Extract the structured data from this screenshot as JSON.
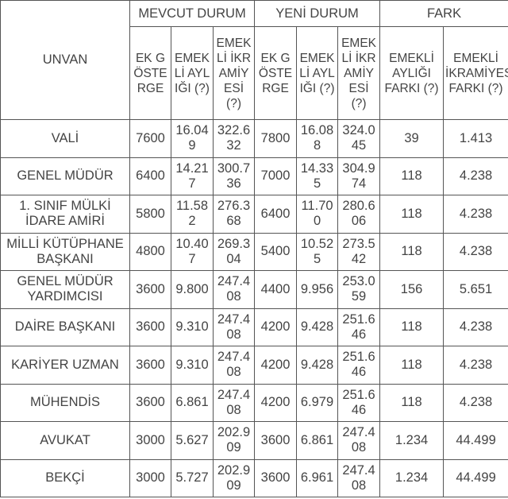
{
  "table": {
    "group_headers": [
      "MEVCUT DURUM",
      "YENİ DURUM",
      "FARK"
    ],
    "unvan_header": "UNVAN",
    "sub_headers": [
      "EK GÖSTERGE",
      "EMEKLİ AYLIĞI (?)",
      "EMEKLİ İKRAMİYESİ (?)",
      "EK GÖSTERGE",
      "EMEKLİ AYLIĞI (?)",
      "EMEKLİ İKRAMİYESİ (?)",
      "EMEKLİ AYLIĞI FARKI (?)",
      "EMEKLİ İKRAMİYESİ FARKI (?)"
    ],
    "rows": [
      [
        "VALİ",
        "7600",
        "16.049",
        "322.632",
        "7800",
        "16.088",
        "324.045",
        "39",
        "1.413"
      ],
      [
        "GENEL MÜDÜR",
        "6400",
        "14.217",
        "300.736",
        "7000",
        "14.335",
        "304.974",
        "118",
        "4.238"
      ],
      [
        "1. SINIF MÜLKİ İDARE AMİRİ",
        "5800",
        "11.582",
        "276.368",
        "6400",
        "11.700",
        "280.606",
        "118",
        "4.238"
      ],
      [
        "MİLLİ KÜTÜPHANE BAŞKANI",
        "4800",
        "10.407",
        "269.304",
        "5400",
        "10.525",
        "273.542",
        "118",
        "4.238"
      ],
      [
        "GENEL MÜDÜR YARDIMCISI",
        "3600",
        "9.800",
        "247.408",
        "4400",
        "9.956",
        "253.059",
        "156",
        "5.651"
      ],
      [
        "DAİRE BAŞKANI",
        "3600",
        "9.310",
        "247.408",
        "4200",
        "9.428",
        "251.646",
        "118",
        "4.238"
      ],
      [
        "KARİYER UZMAN",
        "3600",
        "9.310",
        "247.408",
        "4200",
        "9.428",
        "251.646",
        "118",
        "4.238"
      ],
      [
        "MÜHENDİS",
        "3600",
        "6.861",
        "247.408",
        "4200",
        "6.979",
        "251.646",
        "118",
        "4.238"
      ],
      [
        "AVUKAT",
        "3000",
        "5.627",
        "202.909",
        "3600",
        "6.861",
        "247.408",
        "1.234",
        "44.499"
      ],
      [
        "BEKÇİ",
        "3000",
        "5.727",
        "202.909",
        "3600",
        "6.961",
        "247.408",
        "1.234",
        "44.499"
      ]
    ]
  }
}
